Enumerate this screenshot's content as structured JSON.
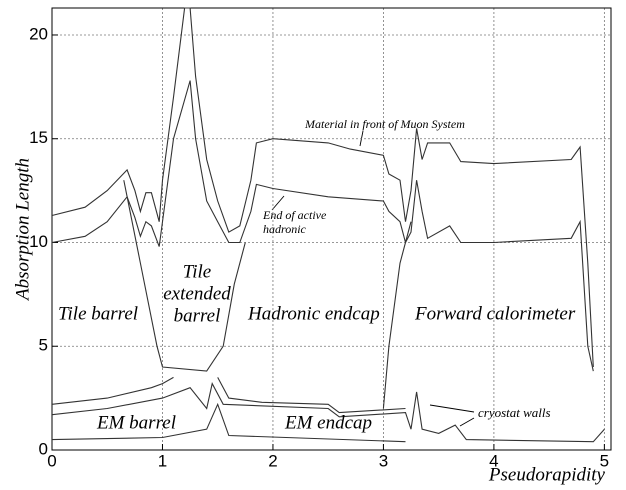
{
  "chart_data": {
    "type": "line",
    "y_label": "Absorption Length",
    "x_label": "Pseudorapidity",
    "xlim": [
      0,
      5.06
    ],
    "ylim": [
      0,
      21.3
    ],
    "xticks": [
      0,
      1,
      2,
      3,
      4,
      5
    ],
    "yticks": [
      0,
      5,
      10,
      15,
      20
    ],
    "grid": true,
    "series": [
      {
        "color": "#333333",
        "x": [
          0,
          0.3,
          0.5,
          0.68,
          0.75,
          0.8,
          0.85,
          0.9,
          0.97,
          1.0,
          1.1,
          1.2,
          1.25,
          1.3,
          1.4,
          1.5,
          1.6,
          1.7,
          1.8,
          1.85,
          2.0,
          2.5,
          2.7,
          3.0,
          3.05,
          3.15,
          3.2,
          3.25,
          3.3,
          3.35,
          3.4,
          3.6,
          3.7,
          4.0,
          4.7,
          4.78,
          4.85,
          4.9
        ],
        "values": [
          11.3,
          11.7,
          12.5,
          13.5,
          12.5,
          11.5,
          12.4,
          12.4,
          11.0,
          13,
          17,
          21.3,
          21.3,
          18,
          14,
          12,
          10.5,
          10.8,
          13,
          14.8,
          15,
          14.8,
          14.5,
          14.2,
          13.3,
          13.0,
          11.0,
          12.5,
          15.5,
          14.0,
          14.8,
          14.8,
          13.9,
          13.8,
          14.0,
          14.6,
          9,
          4.0
        ]
      },
      {
        "color": "#333333",
        "x": [
          0,
          0.3,
          0.5,
          0.68,
          0.75,
          0.8,
          0.85,
          0.9,
          0.97,
          1.0,
          1.1,
          1.25,
          1.3,
          1.4,
          1.5,
          1.6,
          1.7,
          1.8,
          1.85,
          2.0,
          2.5,
          3.0,
          3.05,
          3.15,
          3.2,
          3.25,
          3.3,
          3.35,
          3.4,
          3.6,
          3.7,
          4.0,
          4.7,
          4.78,
          4.85,
          4.9
        ],
        "values": [
          10.0,
          10.3,
          11,
          12.2,
          11.2,
          10.3,
          11,
          10.8,
          9.8,
          11,
          15,
          17.8,
          15,
          12,
          11,
          10,
          10,
          11.5,
          12.8,
          12.6,
          12.2,
          12.0,
          11.5,
          11.0,
          10.0,
          10.5,
          13.0,
          11.5,
          10.2,
          10.8,
          10.0,
          10.0,
          10.2,
          11.0,
          5,
          3.8
        ]
      },
      {
        "color": "#333333",
        "x": [
          0.65,
          0.8,
          0.95,
          1.0,
          1.4,
          1.55,
          1.65,
          1.75
        ],
        "values": [
          13,
          9,
          5,
          4.0,
          3.8,
          5,
          8,
          10
        ]
      },
      {
        "color": "#333333",
        "x": [
          3.0,
          3.05,
          3.15,
          3.25
        ],
        "values": [
          2.0,
          5,
          9,
          11
        ]
      },
      {
        "color": "#333333",
        "x": [
          0,
          0.5,
          0.9,
          1.0,
          1.1,
          null,
          1.5,
          1.6,
          1.9,
          2.5,
          2.6,
          3.2
        ],
        "values": [
          2.2,
          2.5,
          3.0,
          3.2,
          3.5,
          null,
          3.5,
          2.5,
          2.3,
          2.2,
          1.8,
          2.0
        ]
      },
      {
        "color": "#333333",
        "x": [
          0,
          0.5,
          1.0,
          1.25,
          1.4,
          1.45,
          1.55,
          2.5,
          2.6,
          3.2,
          3.25,
          3.3,
          3.35,
          3.5,
          3.65,
          3.75,
          4.9,
          5.0
        ],
        "values": [
          1.7,
          2.0,
          2.5,
          3.0,
          2.0,
          3.2,
          2.2,
          2.0,
          1.6,
          1.8,
          1.0,
          2.8,
          1.0,
          0.8,
          1.2,
          0.5,
          0.4,
          1.0
        ]
      },
      {
        "color": "#333333",
        "x": [
          0,
          1.0,
          1.4,
          1.5,
          1.6,
          3.2
        ],
        "values": [
          0.5,
          0.6,
          1.0,
          2.2,
          0.7,
          0.4
        ]
      }
    ],
    "annotations": [
      "Material in front of Muon System",
      "End of active",
      "hadronic",
      "Tile barrel",
      "Tile",
      "extended",
      "barrel",
      "Hadronic endcap",
      "Forward calorimeter",
      "EM barrel",
      "EM endcap",
      "cryostat walls"
    ]
  }
}
